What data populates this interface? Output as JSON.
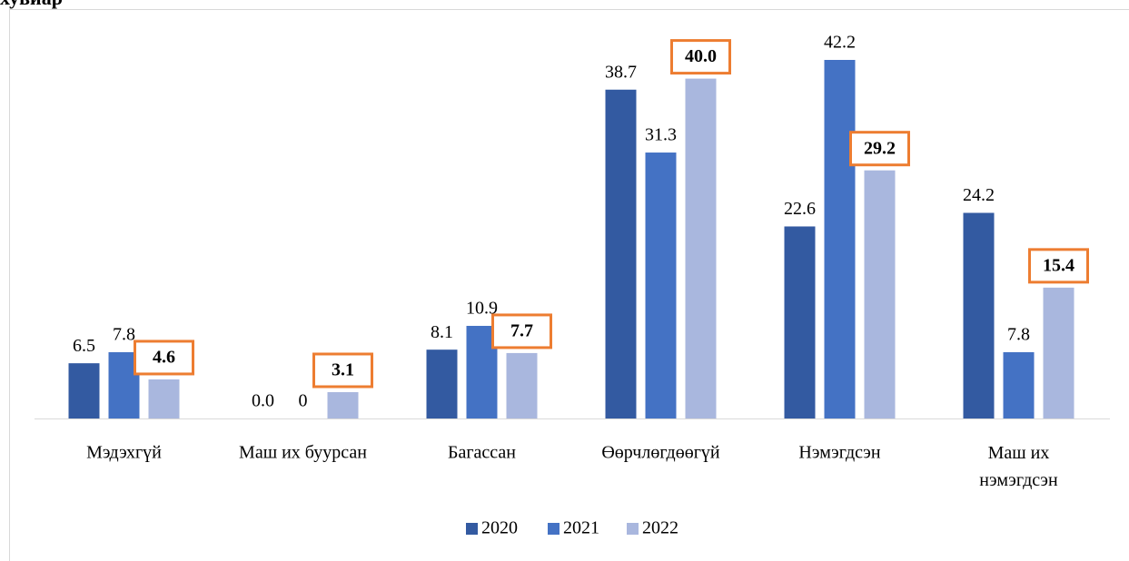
{
  "chart_data": {
    "type": "bar",
    "title": "хувиар",
    "categories": [
      "Мэдэхгүй",
      "Маш их буурсан",
      "Багассан",
      "Өөрчлөгдөөгүй",
      "Нэмэгдсэн",
      "Маш их нэмэгдсэн"
    ],
    "series": [
      {
        "name": "2020",
        "color": "#335AA1",
        "values": [
          6.5,
          0,
          8.1,
          38.7,
          22.6,
          24.2
        ],
        "value_labels": [
          "6.5",
          "0.0",
          "8.1",
          "38.7",
          "22.6",
          "24.2"
        ]
      },
      {
        "name": "2021",
        "color": "#4472C4",
        "values": [
          7.8,
          0,
          10.9,
          31.3,
          42.2,
          7.8
        ],
        "value_labels": [
          "7.8",
          "0",
          "10.9",
          "31.3",
          "42.2",
          "7.8"
        ]
      },
      {
        "name": "2022",
        "color": "#A9B7DE",
        "values": [
          4.6,
          3.1,
          7.7,
          40,
          29.2,
          15.4
        ],
        "value_labels": [
          "4.6",
          "3.1",
          "7.7",
          "40.0",
          "29.2",
          "15.4"
        ],
        "label_box_color": "#ED7D31"
      }
    ],
    "legend": "bottom"
  }
}
